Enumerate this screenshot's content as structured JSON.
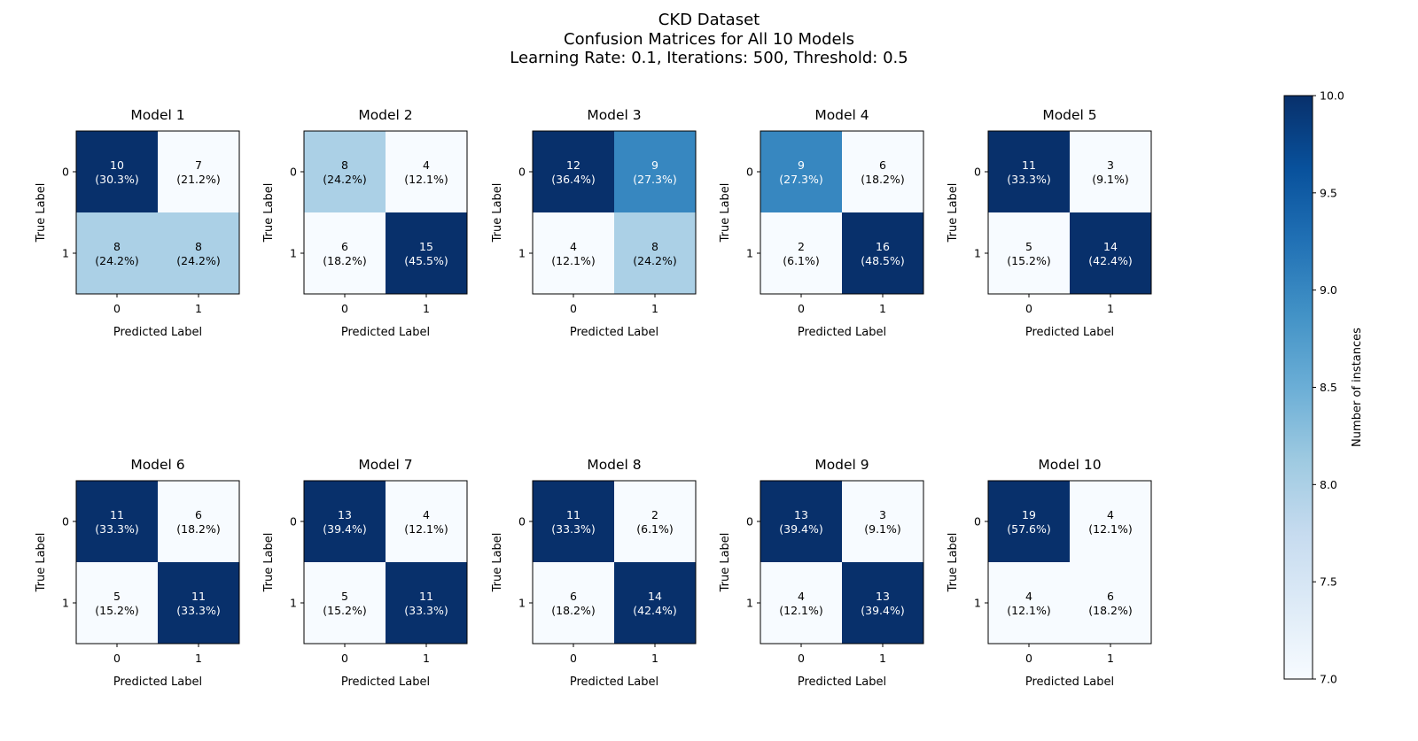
{
  "figure": {
    "title_lines": [
      "CKD Dataset",
      "Confusion Matrices for All 10 Models",
      "Learning Rate: 0.1, Iterations: 500, Threshold: 0.5"
    ]
  },
  "chart_data": {
    "type": "heatmap",
    "colormap": "Blues",
    "xlabel": "Predicted Label",
    "ylabel": "True Label",
    "x_ticks": [
      "0",
      "1"
    ],
    "y_ticks": [
      "0",
      "1"
    ],
    "colorbar": {
      "label": "Number of instances",
      "min": 7.0,
      "max": 10.0,
      "ticks": [
        "7.0",
        "7.5",
        "8.0",
        "8.5",
        "9.0",
        "9.5",
        "10.0"
      ]
    },
    "matrices": [
      {
        "title": "Model 1",
        "values": [
          [
            10,
            7
          ],
          [
            8,
            8
          ]
        ],
        "percents": [
          [
            "(30.3%)",
            "(21.2%)"
          ],
          [
            "(24.2%)",
            "(24.2%)"
          ]
        ]
      },
      {
        "title": "Model 2",
        "values": [
          [
            8,
            4
          ],
          [
            6,
            15
          ]
        ],
        "percents": [
          [
            "(24.2%)",
            "(12.1%)"
          ],
          [
            "(18.2%)",
            "(45.5%)"
          ]
        ]
      },
      {
        "title": "Model 3",
        "values": [
          [
            12,
            9
          ],
          [
            4,
            8
          ]
        ],
        "percents": [
          [
            "(36.4%)",
            "(27.3%)"
          ],
          [
            "(12.1%)",
            "(24.2%)"
          ]
        ]
      },
      {
        "title": "Model 4",
        "values": [
          [
            9,
            6
          ],
          [
            2,
            16
          ]
        ],
        "percents": [
          [
            "(27.3%)",
            "(18.2%)"
          ],
          [
            "(6.1%)",
            "(48.5%)"
          ]
        ]
      },
      {
        "title": "Model 5",
        "values": [
          [
            11,
            3
          ],
          [
            5,
            14
          ]
        ],
        "percents": [
          [
            "(33.3%)",
            "(9.1%)"
          ],
          [
            "(15.2%)",
            "(42.4%)"
          ]
        ]
      },
      {
        "title": "Model 6",
        "values": [
          [
            11,
            6
          ],
          [
            5,
            11
          ]
        ],
        "percents": [
          [
            "(33.3%)",
            "(18.2%)"
          ],
          [
            "(15.2%)",
            "(33.3%)"
          ]
        ]
      },
      {
        "title": "Model 7",
        "values": [
          [
            13,
            4
          ],
          [
            5,
            11
          ]
        ],
        "percents": [
          [
            "(39.4%)",
            "(12.1%)"
          ],
          [
            "(15.2%)",
            "(33.3%)"
          ]
        ]
      },
      {
        "title": "Model 8",
        "values": [
          [
            11,
            2
          ],
          [
            6,
            14
          ]
        ],
        "percents": [
          [
            "(33.3%)",
            "(6.1%)"
          ],
          [
            "(18.2%)",
            "(42.4%)"
          ]
        ]
      },
      {
        "title": "Model 9",
        "values": [
          [
            13,
            3
          ],
          [
            4,
            13
          ]
        ],
        "percents": [
          [
            "(39.4%)",
            "(9.1%)"
          ],
          [
            "(12.1%)",
            "(39.4%)"
          ]
        ]
      },
      {
        "title": "Model 10",
        "values": [
          [
            19,
            4
          ],
          [
            4,
            6
          ]
        ],
        "percents": [
          [
            "(57.6%)",
            "(12.1%)"
          ],
          [
            "(12.1%)",
            "(18.2%)"
          ]
        ]
      }
    ]
  }
}
